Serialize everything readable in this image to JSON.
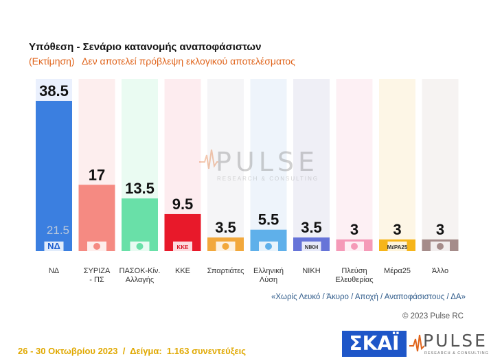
{
  "header": {
    "title": "Υπόθεση - Σενάριο κατανομής αναποφάσιστων",
    "subtitle_left": "(Εκτίμηση)",
    "subtitle_right": "Δεν αποτελεί πρόβλεψη εκλογικού αποτελέσματος"
  },
  "chart_data": {
    "type": "bar",
    "categories": [
      "ΝΔ",
      "ΣΥΡΙΖΑ - ΠΣ",
      "ΠΑΣΟΚ-Κιν. Αλλαγής",
      "ΚΚΕ",
      "Σπαρτιάτες",
      "Ελληνική Λύση",
      "ΝΙΚΗ",
      "Πλεύση Ελευθερίας",
      "Μέρα25",
      "Άλλο"
    ],
    "category_lines": [
      [
        "ΝΔ"
      ],
      [
        "ΣΥΡΙΖΑ",
        "- ΠΣ"
      ],
      [
        "ΠΑΣΟΚ-Κίν.",
        "Αλλαγής"
      ],
      [
        "ΚΚΕ"
      ],
      [
        "Σπαρτιάτες"
      ],
      [
        "Ελληνική",
        "Λύση"
      ],
      [
        "ΝΙΚΗ"
      ],
      [
        "Πλεύση",
        "Ελευθερίας"
      ],
      [
        "Μέρα25"
      ],
      [
        "Άλλο"
      ]
    ],
    "values": [
      38.5,
      17,
      13.5,
      9.5,
      3.5,
      5.5,
      3.5,
      3,
      3,
      3
    ],
    "value_labels": [
      "38.5",
      "17",
      "13.5",
      "9.5",
      "3.5",
      "5.5",
      "3.5",
      "3",
      "3",
      "3"
    ],
    "bar_colors": [
      "#3b7fe0",
      "#f58a82",
      "#69e0a8",
      "#e8192a",
      "#f2a83c",
      "#5fb0ea",
      "#6674d8",
      "#f59ab8",
      "#f6b51a",
      "#a58c8a"
    ],
    "column_colors": [
      "#eaf0fd",
      "#fdeeee",
      "#eafbf2",
      "#fdecef",
      "#f5f5f7",
      "#eef4fb",
      "#efeff6",
      "#fdf0f4",
      "#fdf6e6",
      "#f6f3f2"
    ],
    "logo_labels": [
      "ΝΔ",
      "",
      "",
      "ΚΚΕ",
      "",
      "",
      "ΝΙΚΗ",
      "",
      "ΜέΡΑ25",
      ""
    ],
    "annotation": {
      "category": "ΝΔ",
      "text": "21.5"
    },
    "ylim": [
      0,
      45
    ],
    "legend": "none",
    "grid": false
  },
  "watermark": {
    "brand": "PULSE",
    "tagline": "RESEARCH & CONSULTING"
  },
  "footer": {
    "note": "«Χωρίς Λευκό / Άκυρο / Αποχή / Αναποφάσιστους / ΔΑ»",
    "copyright": "© 2023 Pulse RC",
    "field_info": "26 - 30 Οκτωβρίου 2023  /  Δείγμα:  1.163 συνεντεύξεις",
    "skai_logo": "ΣΚΑΪ",
    "pulse_logo": "PULSE",
    "pulse_tagline": "RESEARCH & CONSULTING"
  }
}
